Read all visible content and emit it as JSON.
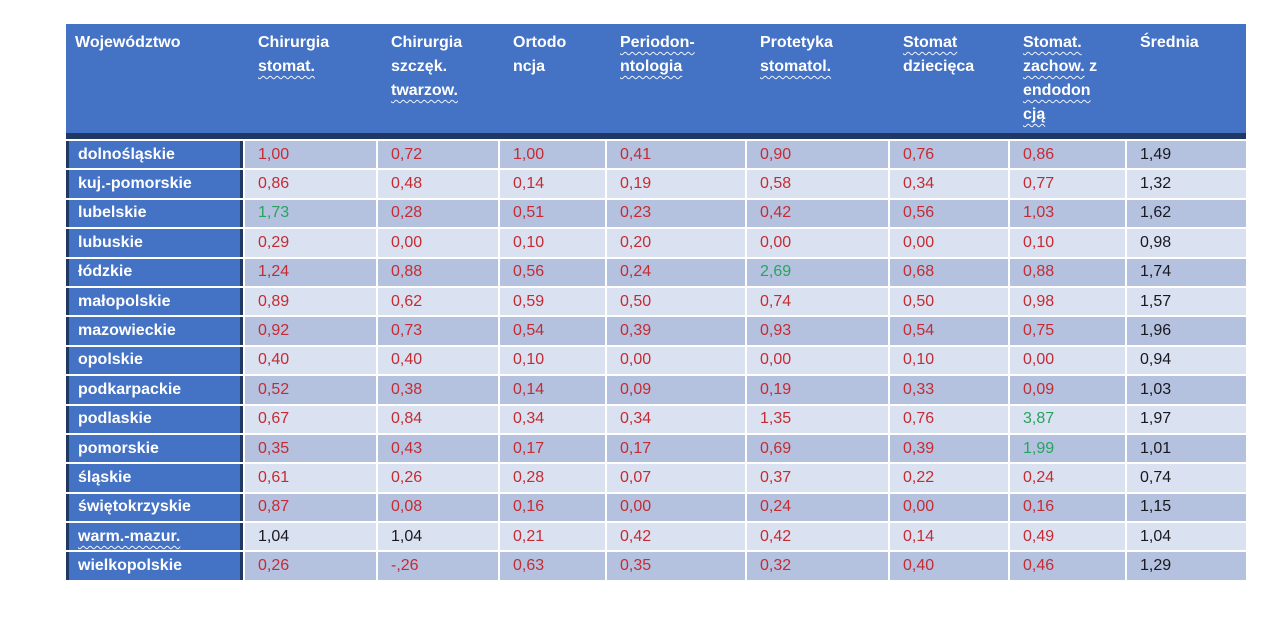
{
  "colors": {
    "header_bg": "#4472C4",
    "label_bg": "#4472C4",
    "header_text": "#FFFFFF",
    "row_dark": "#B4C2E0",
    "row_light": "#DAE2F1",
    "separator": "#FFFFFF",
    "accent_border": "#1F3864",
    "value_red": "#C42B33",
    "value_green": "#27A35E",
    "value_black": "#181820"
  },
  "table": {
    "columns": [
      {
        "id": "wojewodztwo",
        "label_lines": [
          [
            {
              "text": "Województwo",
              "squiggle": false
            }
          ]
        ]
      },
      {
        "id": "chirurgia-stomat",
        "label_lines": [
          [
            {
              "text": "Chirurgia",
              "squiggle": false
            }
          ],
          [
            {
              "text": "stomat.",
              "squiggle": true
            }
          ]
        ]
      },
      {
        "id": "chirurgia-szczek-twarzow",
        "label_lines": [
          [
            {
              "text": "Chirurgia",
              "squiggle": false
            }
          ],
          [
            {
              "text": "szczęk.",
              "squiggle": false
            }
          ],
          [
            {
              "text": "twarzow.",
              "squiggle": true
            }
          ]
        ]
      },
      {
        "id": "ortodoncja",
        "label_lines": [
          [
            {
              "text": "Ortodo",
              "squiggle": false
            }
          ],
          [
            {
              "text": "ncja",
              "squiggle": false
            }
          ]
        ]
      },
      {
        "id": "periodontologia",
        "label_lines": [
          [
            {
              "text": "Periodon-",
              "squiggle": true
            }
          ],
          [
            {
              "text": "ntologia",
              "squiggle": true
            }
          ]
        ]
      },
      {
        "id": "protetyka-stomatol",
        "label_lines": [
          [
            {
              "text": "Protetyka",
              "squiggle": false
            }
          ],
          [
            {
              "text": "stomatol.",
              "squiggle": true
            }
          ]
        ]
      },
      {
        "id": "stomat-dziecieca",
        "label_lines": [
          [
            {
              "text": "Stomat",
              "squiggle": true
            }
          ],
          [
            {
              "text": "dziecięca",
              "squiggle": false
            }
          ]
        ]
      },
      {
        "id": "stomat-zachow-endodoncja",
        "label_lines": [
          [
            {
              "text": "Stomat.",
              "squiggle": true
            }
          ],
          [
            {
              "text": "zachow.",
              "squiggle": true
            },
            {
              "text": " z",
              "squiggle": false
            }
          ],
          [
            {
              "text": "endodon",
              "squiggle": true
            }
          ],
          [
            {
              "text": "cją",
              "squiggle": true
            }
          ]
        ]
      },
      {
        "id": "srednia",
        "label_lines": [
          [
            {
              "text": "Średnia",
              "squiggle": false
            }
          ]
        ]
      }
    ],
    "rows": [
      {
        "label": {
          "text": "dolnośląskie",
          "squiggle": false
        },
        "values": [
          {
            "text": "1,00",
            "color": "red"
          },
          {
            "text": "0,72",
            "color": "red"
          },
          {
            "text": "1,00",
            "color": "red"
          },
          {
            "text": "0,41",
            "color": "red"
          },
          {
            "text": "0,90",
            "color": "red"
          },
          {
            "text": "0,76",
            "color": "red"
          },
          {
            "text": "0,86",
            "color": "red"
          },
          {
            "text": "1,49",
            "color": "black"
          }
        ]
      },
      {
        "label": {
          "text": "kuj.-pomorskie",
          "squiggle": false
        },
        "values": [
          {
            "text": "0,86",
            "color": "red"
          },
          {
            "text": "0,48",
            "color": "red"
          },
          {
            "text": "0,14",
            "color": "red"
          },
          {
            "text": "0,19",
            "color": "red"
          },
          {
            "text": "0,58",
            "color": "red"
          },
          {
            "text": "0,34",
            "color": "red"
          },
          {
            "text": "0,77",
            "color": "red"
          },
          {
            "text": "1,32",
            "color": "black"
          }
        ]
      },
      {
        "label": {
          "text": "lubelskie",
          "squiggle": false
        },
        "values": [
          {
            "text": "1,73",
            "color": "green"
          },
          {
            "text": "0,28",
            "color": "red"
          },
          {
            "text": "0,51",
            "color": "red"
          },
          {
            "text": "0,23",
            "color": "red"
          },
          {
            "text": "0,42",
            "color": "red"
          },
          {
            "text": "0,56",
            "color": "red"
          },
          {
            "text": "1,03",
            "color": "red"
          },
          {
            "text": "1,62",
            "color": "black"
          }
        ]
      },
      {
        "label": {
          "text": "lubuskie",
          "squiggle": false
        },
        "values": [
          {
            "text": "0,29",
            "color": "red"
          },
          {
            "text": "0,00",
            "color": "red"
          },
          {
            "text": "0,10",
            "color": "red"
          },
          {
            "text": "0,20",
            "color": "red"
          },
          {
            "text": "0,00",
            "color": "red"
          },
          {
            "text": "0,00",
            "color": "red"
          },
          {
            "text": "0,10",
            "color": "red"
          },
          {
            "text": "0,98",
            "color": "black"
          }
        ]
      },
      {
        "label": {
          "text": "łódzkie",
          "squiggle": false
        },
        "values": [
          {
            "text": "1,24",
            "color": "red"
          },
          {
            "text": "0,88",
            "color": "red"
          },
          {
            "text": "0,56",
            "color": "red"
          },
          {
            "text": "0,24",
            "color": "red"
          },
          {
            "text": "2,69",
            "color": "green"
          },
          {
            "text": "0,68",
            "color": "red"
          },
          {
            "text": "0,88",
            "color": "red"
          },
          {
            "text": "1,74",
            "color": "black"
          }
        ]
      },
      {
        "label": {
          "text": "małopolskie",
          "squiggle": false
        },
        "values": [
          {
            "text": "0,89",
            "color": "red"
          },
          {
            "text": "0,62",
            "color": "red"
          },
          {
            "text": "0,59",
            "color": "red"
          },
          {
            "text": "0,50",
            "color": "red"
          },
          {
            "text": "0,74",
            "color": "red"
          },
          {
            "text": "0,50",
            "color": "red"
          },
          {
            "text": "0,98",
            "color": "red"
          },
          {
            "text": "1,57",
            "color": "black"
          }
        ]
      },
      {
        "label": {
          "text": "mazowieckie",
          "squiggle": false
        },
        "values": [
          {
            "text": "0,92",
            "color": "red"
          },
          {
            "text": "0,73",
            "color": "red"
          },
          {
            "text": "0,54",
            "color": "red"
          },
          {
            "text": "0,39",
            "color": "red"
          },
          {
            "text": "0,93",
            "color": "red"
          },
          {
            "text": "0,54",
            "color": "red"
          },
          {
            "text": "0,75",
            "color": "red"
          },
          {
            "text": "1,96",
            "color": "black"
          }
        ]
      },
      {
        "label": {
          "text": "opolskie",
          "squiggle": false
        },
        "values": [
          {
            "text": "0,40",
            "color": "red"
          },
          {
            "text": "0,40",
            "color": "red"
          },
          {
            "text": "0,10",
            "color": "red"
          },
          {
            "text": "0,00",
            "color": "red"
          },
          {
            "text": "0,00",
            "color": "red"
          },
          {
            "text": "0,10",
            "color": "red"
          },
          {
            "text": "0,00",
            "color": "red"
          },
          {
            "text": "0,94",
            "color": "black"
          }
        ]
      },
      {
        "label": {
          "text": "podkarpackie",
          "squiggle": false
        },
        "values": [
          {
            "text": "0,52",
            "color": "red"
          },
          {
            "text": "0,38",
            "color": "red"
          },
          {
            "text": "0,14",
            "color": "red"
          },
          {
            "text": "0,09",
            "color": "red"
          },
          {
            "text": "0,19",
            "color": "red"
          },
          {
            "text": "0,33",
            "color": "red"
          },
          {
            "text": "0,09",
            "color": "red"
          },
          {
            "text": "1,03",
            "color": "black"
          }
        ]
      },
      {
        "label": {
          "text": "podlaskie",
          "squiggle": false
        },
        "values": [
          {
            "text": "0,67",
            "color": "red"
          },
          {
            "text": "0,84",
            "color": "red"
          },
          {
            "text": "0,34",
            "color": "red"
          },
          {
            "text": "0,34",
            "color": "red"
          },
          {
            "text": "1,35",
            "color": "red"
          },
          {
            "text": "0,76",
            "color": "red"
          },
          {
            "text": "3,87",
            "color": "green"
          },
          {
            "text": "1,97",
            "color": "black"
          }
        ]
      },
      {
        "label": {
          "text": "pomorskie",
          "squiggle": false
        },
        "values": [
          {
            "text": "0,35",
            "color": "red"
          },
          {
            "text": "0,43",
            "color": "red"
          },
          {
            "text": "0,17",
            "color": "red"
          },
          {
            "text": "0,17",
            "color": "red"
          },
          {
            "text": "0,69",
            "color": "red"
          },
          {
            "text": "0,39",
            "color": "red"
          },
          {
            "text": "1,99",
            "color": "green"
          },
          {
            "text": "1,01",
            "color": "black"
          }
        ]
      },
      {
        "label": {
          "text": "śląskie",
          "squiggle": false
        },
        "values": [
          {
            "text": "0,61",
            "color": "red"
          },
          {
            "text": "0,26",
            "color": "red"
          },
          {
            "text": "0,28",
            "color": "red"
          },
          {
            "text": "0,07",
            "color": "red"
          },
          {
            "text": "0,37",
            "color": "red"
          },
          {
            "text": "0,22",
            "color": "red"
          },
          {
            "text": "0,24",
            "color": "red"
          },
          {
            "text": "0,74",
            "color": "black"
          }
        ]
      },
      {
        "label": {
          "text": "świętokrzyskie",
          "squiggle": false
        },
        "values": [
          {
            "text": "0,87",
            "color": "red"
          },
          {
            "text": "0,08",
            "color": "red"
          },
          {
            "text": "0,16",
            "color": "red"
          },
          {
            "text": "0,00",
            "color": "red"
          },
          {
            "text": "0,24",
            "color": "red"
          },
          {
            "text": "0,00",
            "color": "red"
          },
          {
            "text": "0,16",
            "color": "red"
          },
          {
            "text": "1,15",
            "color": "black"
          }
        ]
      },
      {
        "label": {
          "text": "warm.-mazur.",
          "squiggle": true
        },
        "values": [
          {
            "text": "1,04",
            "color": "black"
          },
          {
            "text": "1,04",
            "color": "black"
          },
          {
            "text": "0,21",
            "color": "red"
          },
          {
            "text": "0,42",
            "color": "red"
          },
          {
            "text": "0,42",
            "color": "red"
          },
          {
            "text": "0,14",
            "color": "red"
          },
          {
            "text": "0,49",
            "color": "red"
          },
          {
            "text": "1,04",
            "color": "black"
          }
        ]
      },
      {
        "label": {
          "text": "wielkopolskie",
          "squiggle": false
        },
        "values": [
          {
            "text": "0,26",
            "color": "red"
          },
          {
            "text": "-,26",
            "color": "red"
          },
          {
            "text": "0,63",
            "color": "red"
          },
          {
            "text": "0,35",
            "color": "red"
          },
          {
            "text": "0,32",
            "color": "red"
          },
          {
            "text": "0,40",
            "color": "red"
          },
          {
            "text": "0,46",
            "color": "red"
          },
          {
            "text": "1,29",
            "color": "black"
          }
        ]
      }
    ]
  }
}
